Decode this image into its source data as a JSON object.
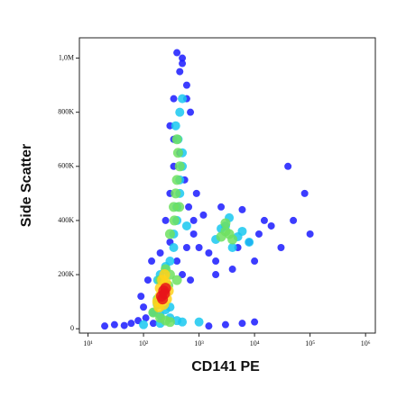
{
  "chart_data": {
    "type": "scatter",
    "x_label": "CD141 PE",
    "y_label": "Side Scatter",
    "xscale": "log",
    "xlim": [
      7,
      1500000
    ],
    "ylim": [
      -16000,
      1075000
    ],
    "xticks": [
      {
        "value": 10,
        "label": "10¹"
      },
      {
        "value": 100,
        "label": "10²"
      },
      {
        "value": 1000,
        "label": "10³"
      },
      {
        "value": 10000,
        "label": "10⁴"
      },
      {
        "value": 100000,
        "label": "10⁵"
      },
      {
        "value": 1000000,
        "label": "10⁶"
      }
    ],
    "yticks": [
      0,
      {
        "value": 200000,
        "label": "200K"
      },
      {
        "value": 400000,
        "label": "400K"
      },
      {
        "value": 600000,
        "label": "600K"
      },
      {
        "value": 800000,
        "label": "800K"
      },
      {
        "value": 1000000,
        "label": "1,0M"
      }
    ],
    "series": [
      {
        "color": "#1a1aff",
        "x": [
          20,
          30,
          45,
          60,
          80,
          110,
          150,
          1500,
          3000,
          6000,
          10000,
          90,
          120,
          140,
          200,
          300,
          400,
          500,
          700,
          250,
          300,
          350,
          450,
          550,
          650,
          800,
          300,
          350,
          450,
          500,
          600,
          700,
          350,
          400,
          500,
          600,
          1000,
          1500,
          2000,
          5000,
          8000,
          12000,
          20000,
          30000,
          1200,
          2500,
          6000,
          15000,
          800,
          2000,
          4000,
          10000,
          50000,
          100000,
          80000,
          40000,
          600,
          900,
          150,
          100
        ],
        "values": [
          10000,
          15000,
          12000,
          20000,
          30000,
          40000,
          20000,
          10000,
          15000,
          20000,
          25000,
          120000,
          180000,
          250000,
          280000,
          320000,
          250000,
          200000,
          180000,
          400000,
          500000,
          600000,
          650000,
          550000,
          450000,
          400000,
          750000,
          850000,
          950000,
          1000000,
          900000,
          800000,
          700000,
          1020000,
          980000,
          850000,
          300000,
          280000,
          250000,
          300000,
          320000,
          350000,
          380000,
          300000,
          420000,
          450000,
          440000,
          400000,
          350000,
          200000,
          220000,
          250000,
          400000,
          350000,
          500000,
          600000,
          300000,
          500000,
          60000,
          80000
        ]
      },
      {
        "color": "#19c8f0",
        "x": [
          150,
          200,
          300,
          400,
          300,
          350,
          400,
          450,
          500,
          350,
          400,
          450,
          500,
          420,
          380,
          450,
          500,
          2000,
          3000,
          4000,
          5000,
          2500,
          3500,
          6000,
          8000,
          100,
          200,
          500,
          1000,
          200,
          250,
          300,
          180,
          250,
          600
        ],
        "values": [
          60000,
          50000,
          40000,
          30000,
          250000,
          350000,
          450000,
          550000,
          650000,
          300000,
          400000,
          500000,
          600000,
          700000,
          750000,
          800000,
          850000,
          330000,
          380000,
          300000,
          340000,
          370000,
          410000,
          360000,
          320000,
          15000,
          20000,
          25000,
          25000,
          200000,
          230000,
          80000,
          180000,
          70000,
          380000
        ]
      },
      {
        "color": "#6fe060",
        "x": [
          300,
          350,
          400,
          450,
          380,
          420,
          360,
          400,
          440,
          2500,
          3000,
          3500,
          4000,
          3000,
          150,
          200,
          250,
          300,
          180,
          180,
          200,
          300,
          400,
          250,
          280
        ],
        "values": [
          350000,
          450000,
          550000,
          600000,
          500000,
          650000,
          400000,
          700000,
          450000,
          340000,
          360000,
          350000,
          330000,
          390000,
          60000,
          40000,
          30000,
          25000,
          110000,
          90000,
          180000,
          200000,
          180000,
          220000,
          160000
        ]
      },
      {
        "color": "#ffd21a",
        "x": [
          180,
          200,
          220,
          250,
          280,
          200,
          240,
          190,
          260,
          230
        ],
        "values": [
          100000,
          150000,
          180000,
          170000,
          140000,
          120000,
          200000,
          80000,
          110000,
          90000
        ]
      },
      {
        "color": "#e8141a",
        "x": [
          210,
          230,
          250,
          220,
          240
        ],
        "values": [
          120000,
          140000,
          150000,
          110000,
          130000
        ]
      }
    ]
  }
}
